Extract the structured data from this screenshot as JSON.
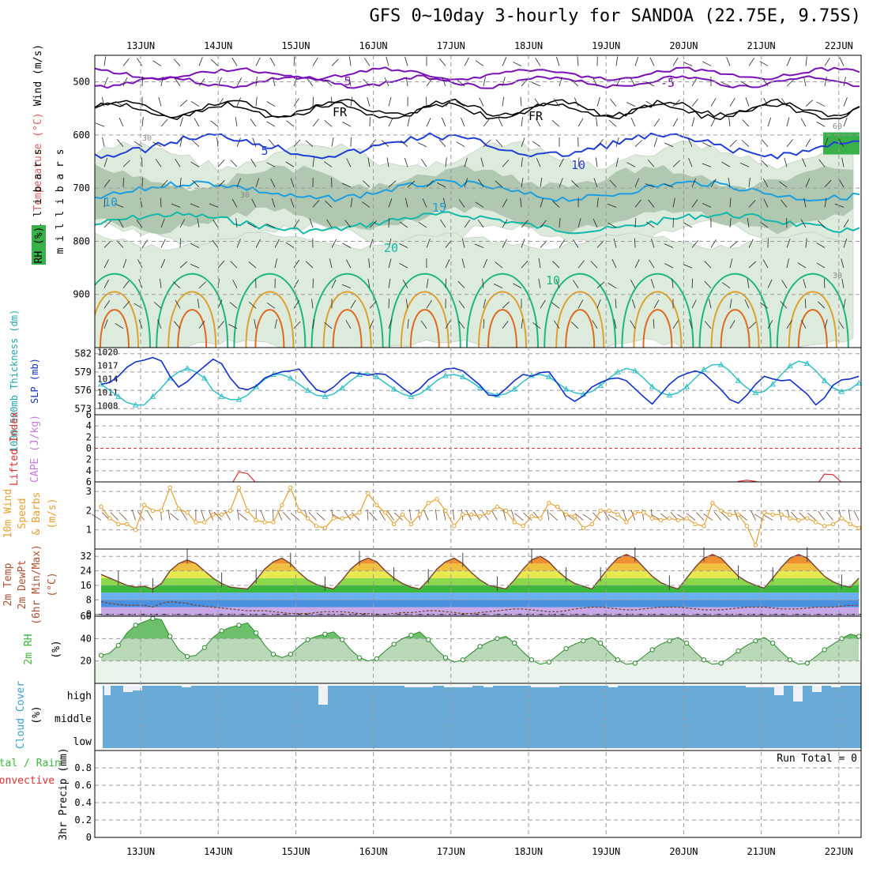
{
  "title": "GFS 0~10day 3-hourly for SANDOA (22.75E, 9.75S)",
  "dates": [
    "13JUN",
    "14JUN",
    "15JUN",
    "16JUN",
    "17JUN",
    "18JUN",
    "19JUN",
    "20JUN",
    "21JUN",
    "22JUN"
  ],
  "colors": {
    "wind_5": "#7a10b8",
    "freezing": "#000000",
    "t5": "#1f3fd6",
    "t10": "#1b9fe0",
    "t15": "#12b8a8",
    "t20": "#1fb57e",
    "t25": "#e0a030",
    "t30": "#e06a20",
    "rh_light": "#dcebdc",
    "rh_mid": "#b0c8b0",
    "rh_dark": "#8aa08a",
    "thickness": "#30c0c8",
    "slp": "#1030c8",
    "wind10": "#e8a030",
    "lifted": "#e03030",
    "cape": "#c878e0",
    "cloud": "#6aaad6",
    "rh2m": "#3cb83c"
  },
  "chart_data": [
    {
      "panel": "upper_air",
      "type": "contour",
      "ylabel": [
        "Wind (m/s)",
        "Temperature (°C)",
        "RH (%)",
        "m i l l i b a r s"
      ],
      "yticks": [
        500,
        600,
        700,
        800,
        900
      ],
      "ylim": [
        1000,
        450
      ],
      "contour_labels": [
        "5",
        "-5",
        "FR",
        "FR",
        "5",
        "10",
        "10",
        "15",
        "20",
        "10",
        "30",
        "30",
        "60",
        "30"
      ]
    },
    {
      "panel": "thickness_slp",
      "type": "line",
      "ylabel_left": "1000-500mb Thickness (dm)",
      "ylabel_right": "SLP (mb)",
      "yticks_left": [
        573,
        576,
        579,
        582
      ],
      "yticks_right": [
        1008,
        1011,
        1014,
        1017,
        1020
      ],
      "series": [
        {
          "name": "Thickness",
          "axis": "left",
          "values": [
            577,
            576,
            575,
            574,
            573.6,
            573.6,
            575,
            576.4,
            578,
            579,
            579.6,
            579,
            578,
            576,
            575,
            574.5,
            574.5,
            575.2,
            576.6,
            577.8,
            578.6,
            578.6,
            578,
            577,
            576,
            575.2,
            575,
            575.4,
            576.4,
            577.6,
            578.6,
            578.8,
            578.2,
            577.2,
            576.2,
            575.4,
            575,
            575.4,
            576.4,
            577.6,
            578.4,
            578.6,
            578.2,
            577.4,
            576.4,
            575.6,
            575.2,
            575.4,
            576.2,
            577.4,
            578.4,
            578.6,
            578.2,
            577.2,
            576.2,
            575.6,
            575.4,
            575.8,
            576.8,
            578,
            579,
            579.6,
            579.2,
            578,
            576.6,
            575.6,
            575.2,
            575.6,
            576.6,
            578,
            579.4,
            580.2,
            580.2,
            579.2,
            577.6,
            576.4,
            575.6,
            575.8,
            577,
            578.6,
            580,
            580.8,
            580.4,
            579.2,
            577.6,
            576.4,
            575.8,
            576.2,
            577.2
          ]
        },
        {
          "name": "SLP",
          "axis": "right",
          "values": [
            1012.8,
            1013.2,
            1014.6,
            1016.6,
            1017.8,
            1018.2,
            1018.8,
            1018,
            1014.6,
            1012.2,
            1013.4,
            1015.2,
            1016.8,
            1018.4,
            1017.4,
            1014.2,
            1012,
            1011.6,
            1012.4,
            1014.2,
            1015,
            1015.6,
            1015.8,
            1016.2,
            1013.8,
            1011.6,
            1011,
            1012.2,
            1014,
            1015.4,
            1015.2,
            1014.8,
            1015.2,
            1015,
            1013.6,
            1012,
            1010.6,
            1011.8,
            1013.8,
            1015,
            1016.2,
            1016.4,
            1015.8,
            1014.2,
            1012.6,
            1010.4,
            1010.2,
            1011.8,
            1013.6,
            1015,
            1014.6,
            1015.4,
            1015.6,
            1013,
            1010.2,
            1009,
            1010.2,
            1012.2,
            1013.2,
            1014,
            1014.2,
            1013.6,
            1011.8,
            1010,
            1008.4,
            1010.6,
            1012.8,
            1014.4,
            1015.2,
            1015.8,
            1015.2,
            1013.4,
            1011.6,
            1009.4,
            1008.6,
            1010.4,
            1012.8,
            1014.6,
            1014,
            1013.6,
            1013.8,
            1012.2,
            1010.6,
            1008.2,
            1009.8,
            1012.6,
            1013.8,
            1014,
            1014.6
          ]
        }
      ]
    },
    {
      "panel": "stability",
      "type": "line",
      "ylabel": [
        "Lifted Index",
        "CAPE (J/kg)"
      ],
      "yticks": [
        -6,
        -4,
        -2,
        0,
        2,
        4,
        6
      ],
      "yticklabels": [
        "6",
        "4",
        "2",
        "0",
        "2",
        "4",
        "6"
      ],
      "ylim": [
        -6,
        6
      ],
      "reference_line": 0,
      "series": [
        {
          "name": "Lifted Index",
          "values": [
            6.8,
            6.8,
            6.8,
            6.8,
            6.8,
            6.8,
            6.8,
            6.8,
            6.8,
            6.8,
            6.8,
            6.8,
            6.8,
            6.8,
            6.8,
            6.8,
            4.2,
            4.5,
            6.2,
            6.8,
            6.8,
            6.8,
            6.8,
            6.8,
            6.8,
            6.8,
            6.8,
            6.8,
            6.8,
            6.8,
            6.8,
            6.8,
            6.8,
            6.8,
            6.8,
            6.8,
            6.8,
            6.8,
            6.8,
            6.8,
            6.8,
            6.8,
            6.8,
            6.8,
            6.8,
            6.8,
            6.8,
            6.8,
            6.8,
            6.8,
            6.8,
            6.8,
            6.8,
            6.8,
            6.8,
            6.8,
            6.8,
            6.8,
            6.8,
            6.8,
            6.8,
            6.8,
            6.8,
            6.8,
            6.8,
            6.8,
            6.8,
            6.8,
            6.8,
            6.8,
            6.8,
            6.8,
            6.8,
            6.8,
            5.9,
            5.7,
            5.9,
            6.8,
            6.8,
            6.8,
            6.8,
            6.8,
            6.8,
            6.8,
            4.6,
            4.7,
            6.1,
            6.8,
            6.8
          ]
        }
      ]
    },
    {
      "panel": "wind10m",
      "type": "line",
      "ylabel": [
        "10m Wind",
        "Speed",
        "& Barbs",
        "(m/s)"
      ],
      "yticks": [
        1,
        2,
        3
      ],
      "ylim": [
        0,
        3.5
      ],
      "series": [
        {
          "name": "10m Wind Speed",
          "values": [
            2.2,
            1.6,
            1.3,
            1.3,
            1.0,
            2.3,
            2.0,
            2.0,
            3.2,
            2.1,
            1.9,
            1.4,
            1.4,
            1.8,
            1.8,
            2.0,
            3.2,
            2.0,
            1.5,
            1.4,
            1.4,
            2.3,
            3.2,
            2.0,
            1.6,
            1.2,
            1.1,
            1.6,
            1.6,
            1.7,
            1.9,
            2.9,
            2.3,
            1.9,
            1.3,
            1.8,
            1.3,
            1.8,
            2.4,
            2.6,
            2.0,
            1.2,
            1.8,
            1.8,
            1.7,
            1.9,
            2.2,
            2.0,
            1.4,
            1.2,
            1.7,
            1.6,
            2.4,
            2.2,
            1.8,
            1.7,
            1.1,
            1.3,
            2.0,
            2.0,
            1.8,
            1.4,
            1.9,
            1.9,
            1.6,
            1.5,
            1.6,
            1.5,
            1.6,
            1.3,
            1.2,
            2.4,
            2.0,
            1.8,
            1.8,
            1.2,
            0.2,
            1.9,
            1.8,
            1.8,
            1.6,
            1.5,
            1.6,
            1.4,
            1.2,
            1.3,
            1.6,
            1.3,
            1.1
          ]
        }
      ]
    },
    {
      "panel": "temperature",
      "type": "area",
      "ylabel": [
        "2m Temp",
        "2m DewPt",
        "(6hr Min/Max)",
        "(°C)"
      ],
      "yticks": [
        0,
        8,
        16,
        24,
        32
      ],
      "ylim": [
        -1,
        36
      ],
      "series": [
        {
          "name": "2m Temp",
          "values": [
            22,
            20,
            18,
            16,
            15,
            15.5,
            14,
            17,
            24,
            28,
            30,
            28,
            24,
            20,
            17,
            15,
            14.5,
            14,
            19,
            25,
            29,
            31,
            28,
            23,
            19,
            16.5,
            15,
            14,
            19,
            25,
            29,
            31,
            29,
            24,
            20,
            17,
            15,
            14,
            19,
            25,
            29,
            31,
            28,
            23,
            19,
            16,
            15,
            14,
            19,
            25,
            30,
            32,
            29,
            24,
            20,
            17,
            15.5,
            14,
            20,
            26,
            31,
            33,
            31,
            26,
            21,
            17.5,
            15.5,
            14,
            20,
            26,
            31,
            33,
            31,
            26,
            21,
            18,
            16,
            14.5,
            20,
            26,
            31,
            33,
            31,
            26,
            21,
            18,
            16,
            15,
            20
          ]
        },
        {
          "name": "2m DewPt",
          "values": [
            7,
            6,
            5.5,
            5,
            5,
            5,
            4,
            6,
            7,
            6.5,
            6,
            5,
            4.5,
            4,
            3.5,
            3,
            2.5,
            2,
            2,
            2,
            1.5,
            1,
            0.5,
            0.5,
            0.5,
            1,
            1.5,
            1.5,
            1.5,
            1,
            0.5,
            0.5,
            0,
            0,
            0.5,
            1,
            1,
            1.5,
            2,
            2,
            1.5,
            1,
            0.5,
            0.5,
            1,
            1.5,
            2,
            2.5,
            3,
            3,
            2.5,
            2,
            1.5,
            1.5,
            2,
            3,
            3.5,
            4,
            4,
            3.5,
            3,
            2.5,
            2.5,
            3,
            3.5,
            4,
            4,
            4,
            3.5,
            3,
            2.5,
            2.5,
            2.5,
            3,
            3.5,
            4,
            4,
            4,
            3.5,
            3,
            3,
            3,
            3.5,
            4,
            4,
            4,
            4.5,
            5,
            5
          ]
        }
      ]
    },
    {
      "panel": "rh2m",
      "type": "area",
      "ylabel": [
        "2m RH",
        "(%)"
      ],
      "yticks": [
        20,
        40,
        60
      ],
      "ylim": [
        0,
        60
      ],
      "series": [
        {
          "name": "2m RH",
          "values": [
            25,
            27,
            34,
            45,
            52,
            55,
            58,
            57,
            42,
            30,
            24,
            25,
            32,
            41,
            47,
            50,
            52,
            54,
            45,
            34,
            26,
            23,
            26,
            33,
            39,
            42,
            44,
            46,
            39,
            30,
            23,
            20,
            22,
            29,
            35,
            40,
            43,
            46,
            39,
            30,
            23,
            19,
            21,
            27,
            33,
            37,
            40,
            42,
            36,
            28,
            21,
            17,
            19,
            25,
            31,
            35,
            38,
            41,
            36,
            28,
            21,
            17,
            18,
            24,
            30,
            35,
            38,
            41,
            36,
            28,
            21,
            17,
            18,
            23,
            29,
            34,
            38,
            41,
            36,
            28,
            21,
            17,
            18,
            24,
            30,
            35,
            40,
            44,
            42
          ]
        }
      ]
    },
    {
      "panel": "cloud",
      "type": "bar",
      "ylabel": [
        "Cloud Cover",
        "(%)"
      ],
      "yticklabels": [
        "high",
        "middle",
        "low"
      ]
    },
    {
      "panel": "precip",
      "type": "bar",
      "ylabel": [
        "Total / Rain",
        "Convective",
        "3hr Precip (mm)"
      ],
      "yticks": [
        0,
        0.2,
        0.4,
        0.6,
        0.8
      ],
      "ylim": [
        0,
        1.0
      ],
      "annotation": "Run Total = 0",
      "values": []
    }
  ]
}
